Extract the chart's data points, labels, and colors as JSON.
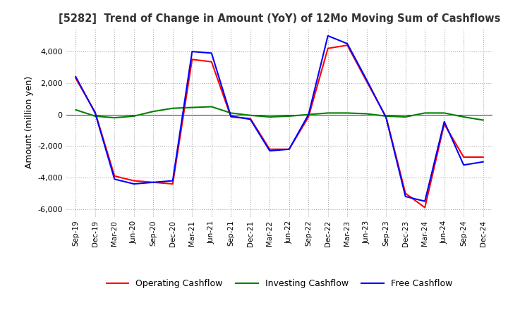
{
  "title": "[5282]  Trend of Change in Amount (YoY) of 12Mo Moving Sum of Cashflows",
  "ylabel": "Amount (million yen)",
  "ylim": [
    -6500,
    5500
  ],
  "yticks": [
    -6000,
    -4000,
    -2000,
    0,
    2000,
    4000
  ],
  "x_labels": [
    "Sep-19",
    "Dec-19",
    "Mar-20",
    "Jun-20",
    "Sep-20",
    "Dec-20",
    "Mar-21",
    "Jun-21",
    "Sep-21",
    "Dec-21",
    "Mar-22",
    "Jun-22",
    "Sep-22",
    "Dec-22",
    "Mar-23",
    "Jun-23",
    "Sep-23",
    "Dec-23",
    "Mar-24",
    "Jun-24",
    "Sep-24",
    "Dec-24"
  ],
  "operating": [
    2300,
    150,
    -3900,
    -4200,
    -4300,
    -4400,
    3500,
    3350,
    -150,
    -250,
    -2200,
    -2200,
    -150,
    4200,
    4400,
    2100,
    -150,
    -5000,
    -5900,
    -600,
    -2700,
    -2700
  ],
  "investing": [
    300,
    -100,
    -200,
    -100,
    200,
    400,
    450,
    500,
    100,
    -50,
    -150,
    -100,
    0,
    100,
    100,
    50,
    -100,
    -150,
    100,
    100,
    -150,
    -350
  ],
  "free": [
    2400,
    100,
    -4100,
    -4400,
    -4300,
    -4200,
    4000,
    3900,
    -100,
    -300,
    -2300,
    -2200,
    0,
    5000,
    4500,
    2200,
    -200,
    -5200,
    -5500,
    -450,
    -3200,
    -3000
  ],
  "operating_color": "#ff0000",
  "investing_color": "#008000",
  "free_color": "#0000ff",
  "background_color": "#ffffff",
  "grid_color": "#aaaaaa"
}
